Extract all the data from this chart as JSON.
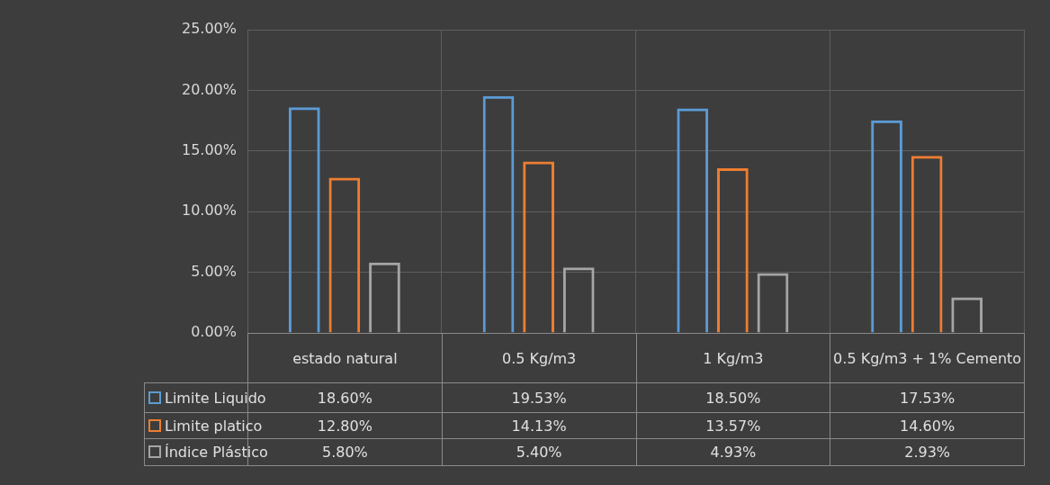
{
  "chart_data": {
    "type": "bar",
    "categories": [
      "estado natural",
      "0.5 Kg/m3",
      "1 Kg/m3",
      "0.5 Kg/m3 + 1% Cemento"
    ],
    "series": [
      {
        "name": "Limite Liquido",
        "color": "#5b9bd5",
        "values": [
          18.6,
          19.53,
          18.5,
          17.53
        ],
        "value_labels": [
          "18.60%",
          "19.53%",
          "18.50%",
          "17.53%"
        ]
      },
      {
        "name": "Limite platico",
        "color": "#ed7d31",
        "values": [
          12.8,
          14.13,
          13.57,
          14.6
        ],
        "value_labels": [
          "12.80%",
          "14.13%",
          "13.57%",
          "14.60%"
        ]
      },
      {
        "name": "Índice Plástico",
        "color": "#a5a5a5",
        "values": [
          5.8,
          5.4,
          4.93,
          2.93
        ],
        "value_labels": [
          "5.80%",
          "5.40%",
          "4.93%",
          "2.93%"
        ]
      }
    ],
    "ylim": [
      0,
      25
    ],
    "yticks": [
      {
        "value": 0,
        "label": "0.00%"
      },
      {
        "value": 5,
        "label": "5.00%"
      },
      {
        "value": 10,
        "label": "10.00%"
      },
      {
        "value": 15,
        "label": "15.00%"
      },
      {
        "value": 20,
        "label": "20.00%"
      },
      {
        "value": 25,
        "label": "25.00%"
      }
    ],
    "grid": true,
    "legend": "bottom"
  }
}
